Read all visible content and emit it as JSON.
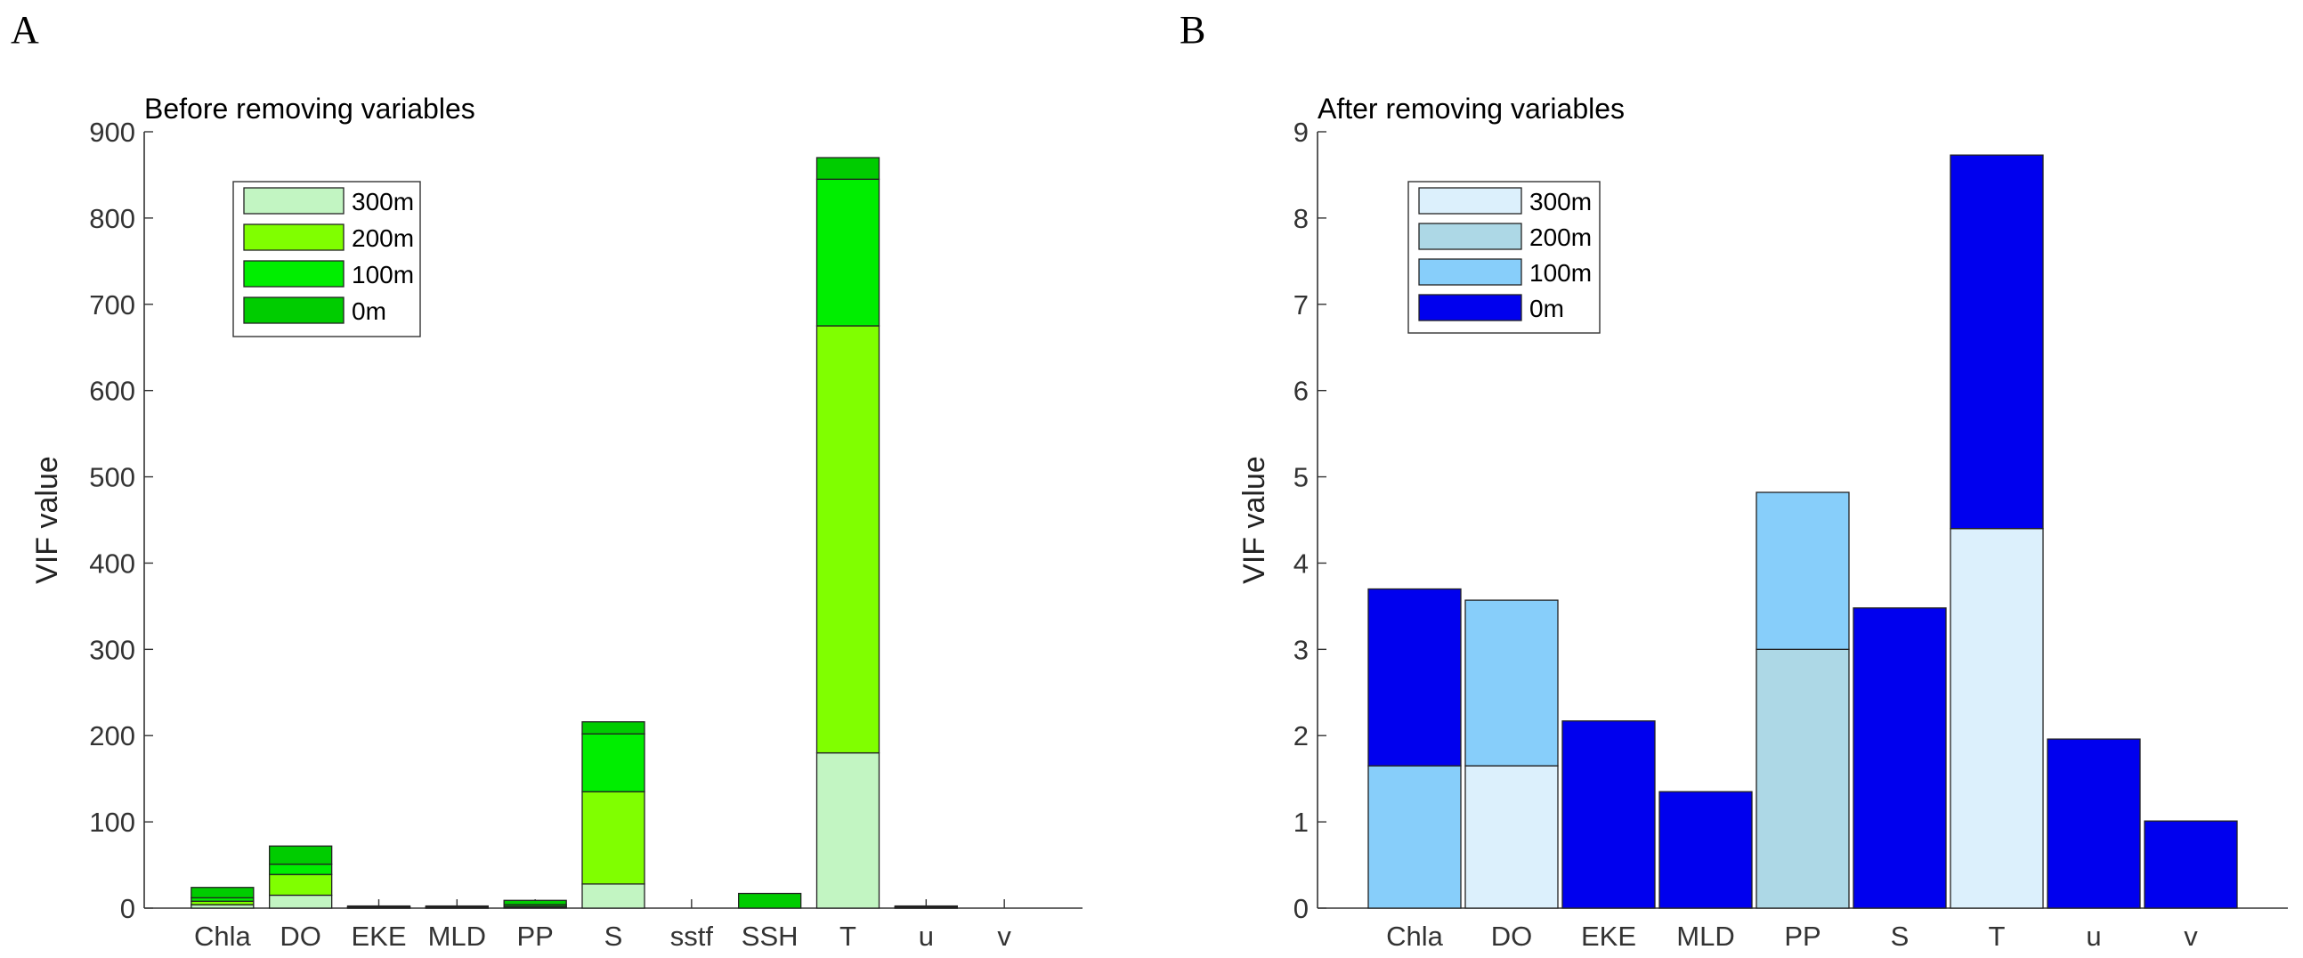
{
  "chart_data": [
    {
      "type": "bar",
      "stacked": true,
      "panel_label": "A",
      "title": "Before removing variables",
      "xlabel": "",
      "ylabel": "VIF value",
      "ylim": [
        0,
        900
      ],
      "yticks": [
        0,
        100,
        200,
        300,
        400,
        500,
        600,
        700,
        800,
        900
      ],
      "categories": [
        "Chla",
        "DO",
        "EKE",
        "MLD",
        "PP",
        "S",
        "sstf",
        "SSH",
        "T",
        "u",
        "v"
      ],
      "legend_position": "top-left",
      "series": [
        {
          "name": "300m",
          "color": "#c2f5c2",
          "values": [
            4,
            15,
            0.5,
            0.5,
            1,
            28,
            0,
            0,
            180,
            0.5,
            0
          ]
        },
        {
          "name": "200m",
          "color": "#80ff00",
          "values": [
            4,
            24,
            0.5,
            0.5,
            1,
            107,
            0,
            0,
            495,
            0.5,
            0
          ]
        },
        {
          "name": "100m",
          "color": "#00ee00",
          "values": [
            4,
            12,
            0.5,
            0.5,
            2,
            67,
            0,
            0,
            170,
            0.5,
            0
          ]
        },
        {
          "name": "0m",
          "color": "#00cc00",
          "values": [
            12,
            21,
            1,
            1,
            5,
            14,
            0,
            17,
            25,
            1,
            0
          ]
        }
      ]
    },
    {
      "type": "bar",
      "stacked": true,
      "panel_label": "B",
      "title": "After removing variables",
      "xlabel": "",
      "ylabel": "VIF value",
      "ylim": [
        0,
        9
      ],
      "yticks": [
        0,
        1,
        2,
        3,
        4,
        5,
        6,
        7,
        8,
        9
      ],
      "categories": [
        "Chla",
        "DO",
        "EKE",
        "MLD",
        "PP",
        "S",
        "T",
        "u",
        "v"
      ],
      "legend_position": "top-left",
      "series": [
        {
          "name": "300m",
          "color": "#dcf0fc",
          "values": [
            0,
            1.65,
            0,
            0,
            0,
            0,
            4.4,
            0,
            0
          ]
        },
        {
          "name": "200m",
          "color": "#add8e6",
          "values": [
            0,
            0,
            0,
            0,
            3.0,
            0,
            0,
            0,
            0
          ]
        },
        {
          "name": "100m",
          "color": "#87cefa",
          "values": [
            1.65,
            1.92,
            0,
            0,
            1.82,
            0,
            0,
            0,
            0
          ]
        },
        {
          "name": "0m",
          "color": "#0000ee",
          "values": [
            2.05,
            0,
            2.17,
            1.35,
            0,
            3.48,
            4.33,
            1.96,
            1.01
          ]
        }
      ]
    }
  ]
}
